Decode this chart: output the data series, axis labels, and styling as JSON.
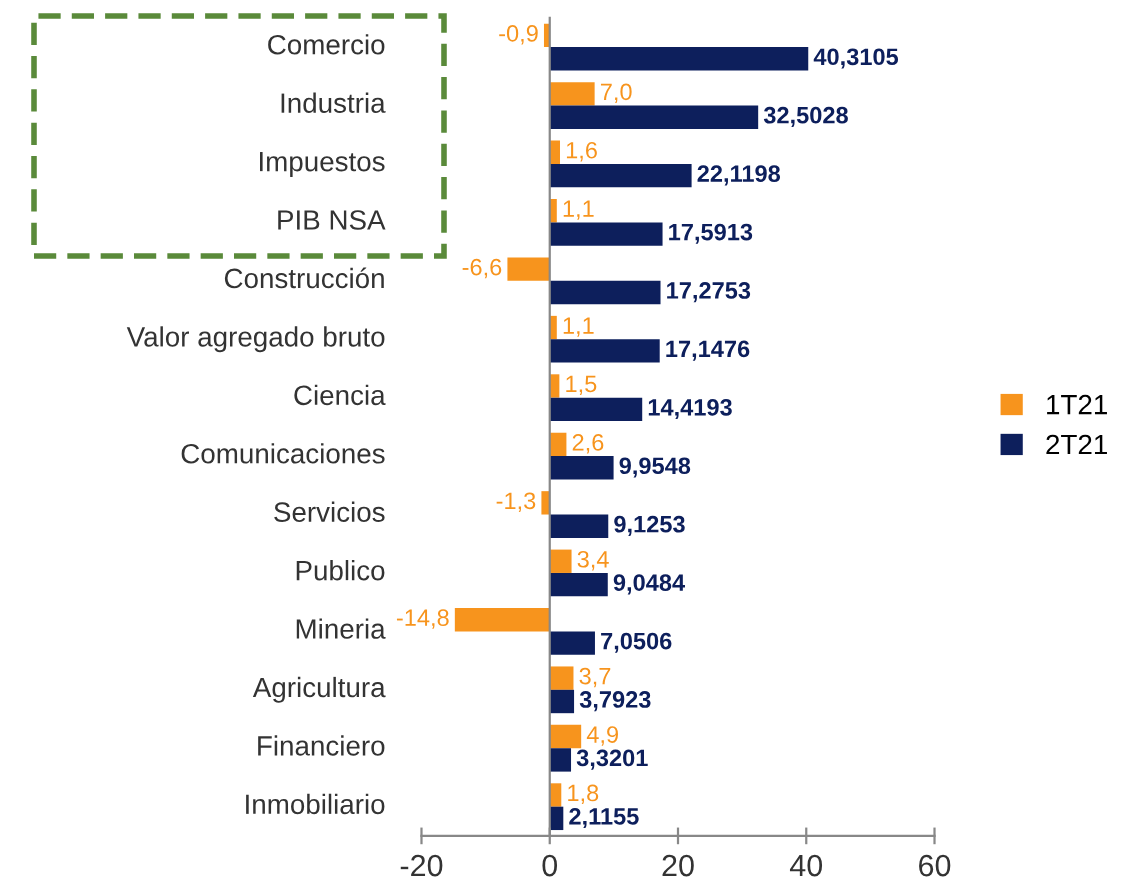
{
  "chart_data": {
    "type": "bar",
    "orientation": "horizontal",
    "categories": [
      "Comercio",
      "Industria",
      "Impuestos",
      "PIB NSA",
      "Construcción",
      "Valor agregado bruto",
      "Ciencia",
      "Comunicaciones",
      "Servicios",
      "Publico",
      "Mineria",
      "Agricultura",
      "Financiero",
      "Inmobiliario"
    ],
    "series": [
      {
        "name": "1T21",
        "color": "#f7941d",
        "values": [
          -0.9,
          7.0,
          1.6,
          1.1,
          -6.6,
          1.1,
          1.5,
          2.6,
          -1.3,
          3.4,
          -14.8,
          3.7,
          4.9,
          1.8
        ],
        "value_labels": [
          "-0,9",
          "7,0",
          "1,6",
          "1,1",
          "-6,6",
          "1,1",
          "1,5",
          "2,6",
          "-1,3",
          "3,4",
          "-14,8",
          "3,7",
          "4,9",
          "1,8"
        ]
      },
      {
        "name": "2T21",
        "color": "#0d1f5c",
        "values": [
          40.3105,
          32.5028,
          22.1198,
          17.5913,
          17.2753,
          17.1476,
          14.4193,
          9.9548,
          9.1253,
          9.0484,
          7.0506,
          3.7923,
          3.3201,
          2.1155
        ],
        "value_labels": [
          "40,3105",
          "32,5028",
          "22,1198",
          "17,5913",
          "17,2753",
          "17,1476",
          "14,4193",
          "9,9548",
          "9,1253",
          "9,0484",
          "7,0506",
          "3,7923",
          "3,3201",
          "2,1155"
        ]
      }
    ],
    "xlim": [
      -20,
      60
    ],
    "xticks": [
      -20,
      0,
      20,
      40,
      60
    ],
    "legend": "right"
  }
}
